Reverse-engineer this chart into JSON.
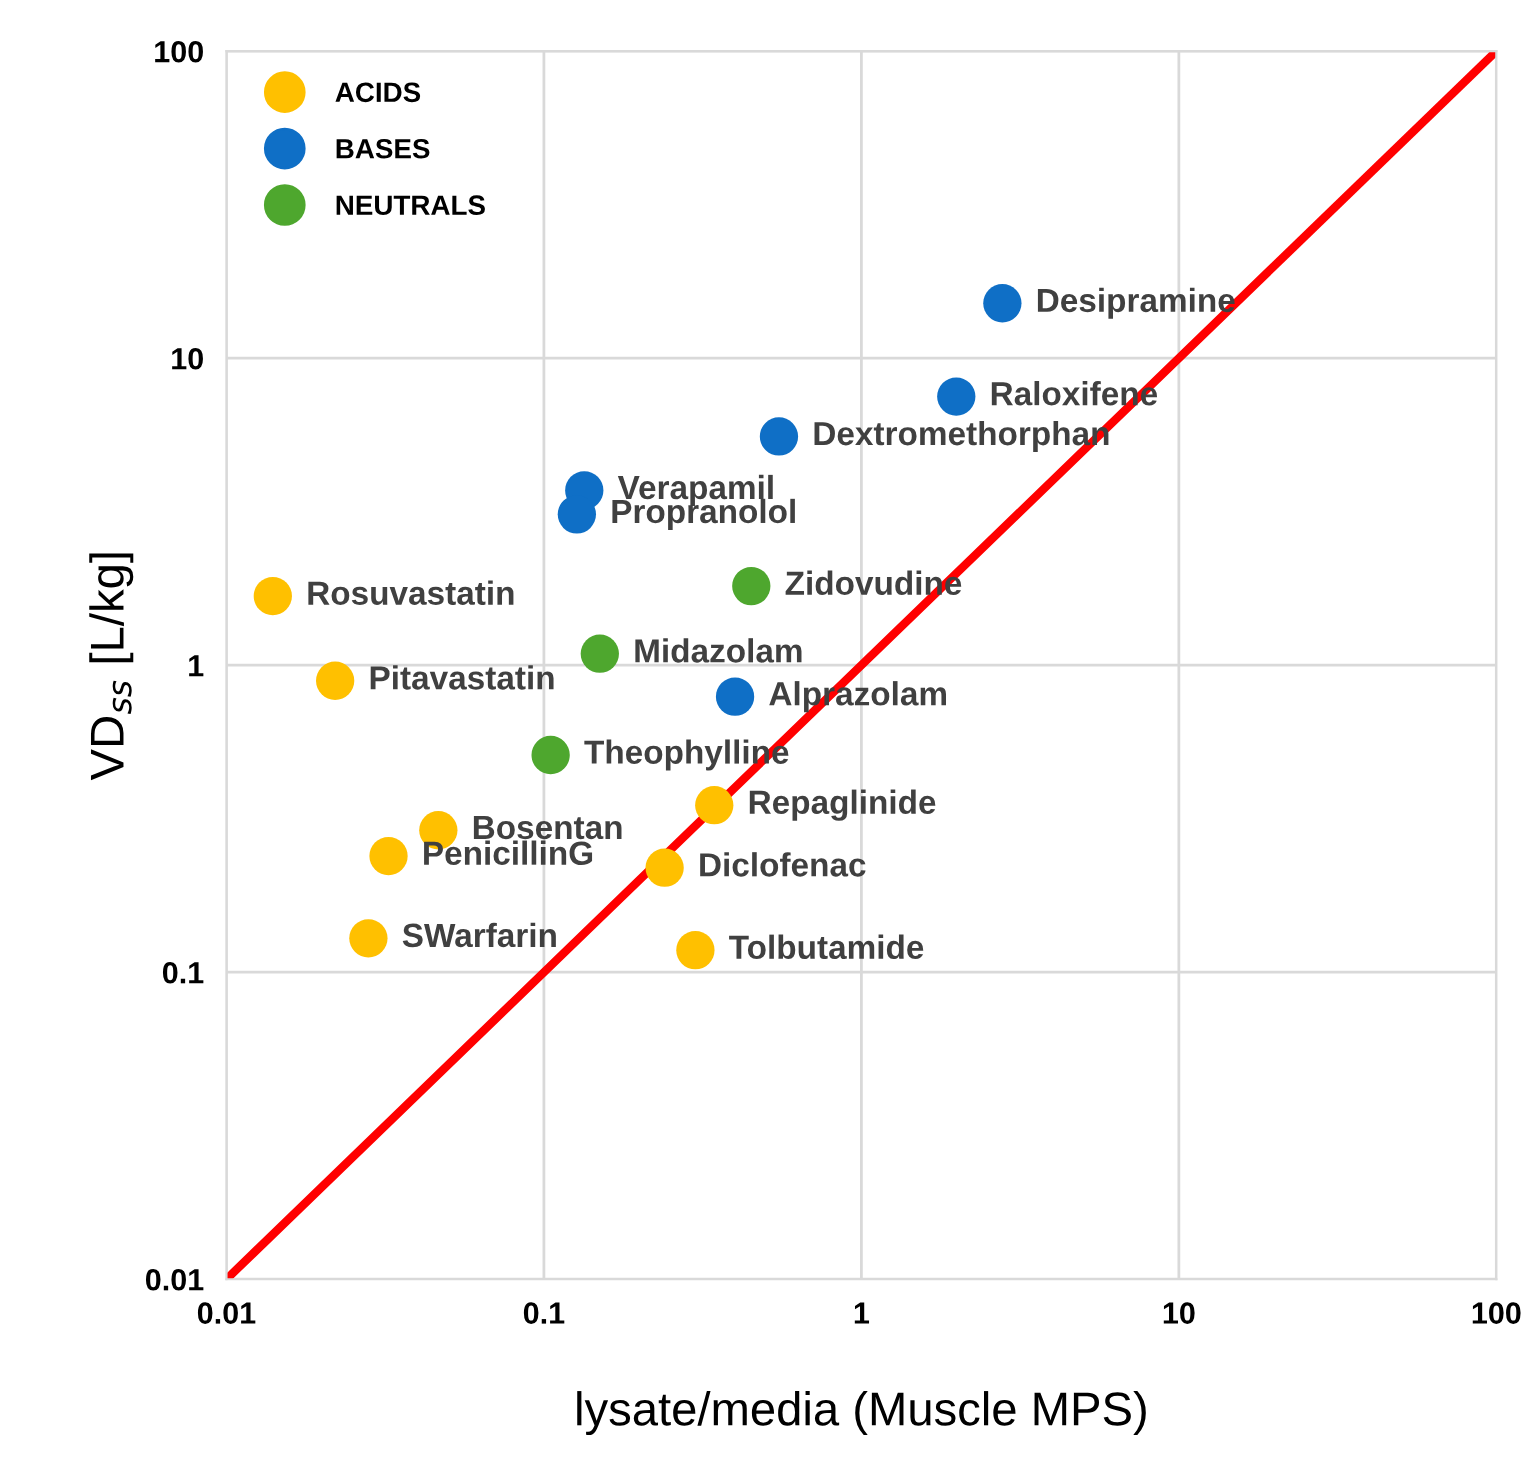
{
  "chart_data": {
    "type": "scatter",
    "xlabel": "lysate/media (Muscle MPS)",
    "ylabel": "VD$_{ss}$ [L/kg]",
    "log": "xy",
    "xlim": [
      0.01,
      100
    ],
    "ylim": [
      0.01,
      100
    ],
    "xticks": [
      0.01,
      0.1,
      1,
      10,
      100
    ],
    "yticks": [
      0.01,
      0.1,
      1,
      10,
      100
    ],
    "grid": true,
    "legend": "top left",
    "marker": "circle",
    "series": [
      {
        "name": "ACIDS",
        "color": "#ffc000",
        "x": [
          0.014,
          0.022,
          0.0465,
          0.0324,
          0.028,
          0.344,
          0.24,
          0.3
        ],
        "values": [
          1.68,
          0.89,
          0.29,
          0.239,
          0.129,
          0.35,
          0.219,
          0.118
        ]
      },
      {
        "name": "BASES",
        "color": "#0f6fc6",
        "x": [
          2.78,
          1.99,
          0.55,
          0.134,
          0.127,
          0.4
        ],
        "values": [
          15.1,
          7.5,
          5.56,
          3.71,
          3.1,
          0.79
        ]
      },
      {
        "name": "NEUTRALS",
        "color": "#4ea72e",
        "x": [
          0.45,
          0.15,
          0.105
        ],
        "values": [
          1.81,
          1.09,
          0.51
        ]
      },
      {
        "type": "line",
        "marker": "none",
        "color": "#ff0000",
        "x": [
          0.01,
          100
        ],
        "values": [
          0.01,
          100
        ]
      }
    ],
    "annotations": [
      {
        "text": "Rosuvastatin",
        "x": 0.014,
        "y": 1.68
      },
      {
        "text": "Pitavastatin",
        "x": 0.022,
        "y": 0.89
      },
      {
        "text": "Bosentan",
        "x": 0.0465,
        "y": 0.29
      },
      {
        "text": "PenicillinG",
        "x": 0.0324,
        "y": 0.239
      },
      {
        "text": "SWarfarin",
        "x": 0.028,
        "y": 0.129
      },
      {
        "text": "Repaglinide",
        "x": 0.344,
        "y": 0.35
      },
      {
        "text": "Diclofenac",
        "x": 0.24,
        "y": 0.219
      },
      {
        "text": "Tolbutamide",
        "x": 0.3,
        "y": 0.118
      },
      {
        "text": "Desipramine",
        "x": 2.78,
        "y": 15.1
      },
      {
        "text": "Raloxifene",
        "x": 1.99,
        "y": 7.5
      },
      {
        "text": "Dextromethorphan",
        "x": 0.55,
        "y": 5.56
      },
      {
        "text": "Verapamil",
        "x": 0.134,
        "y": 3.71
      },
      {
        "text": "Propranolol",
        "x": 0.127,
        "y": 3.1
      },
      {
        "text": "Alprazolam",
        "x": 0.4,
        "y": 0.79
      },
      {
        "text": "Zidovudine",
        "x": 0.45,
        "y": 1.81
      },
      {
        "text": "Midazolam",
        "x": 0.15,
        "y": 1.09
      },
      {
        "text": "Theophylline",
        "x": 0.105,
        "y": 0.51
      }
    ]
  }
}
